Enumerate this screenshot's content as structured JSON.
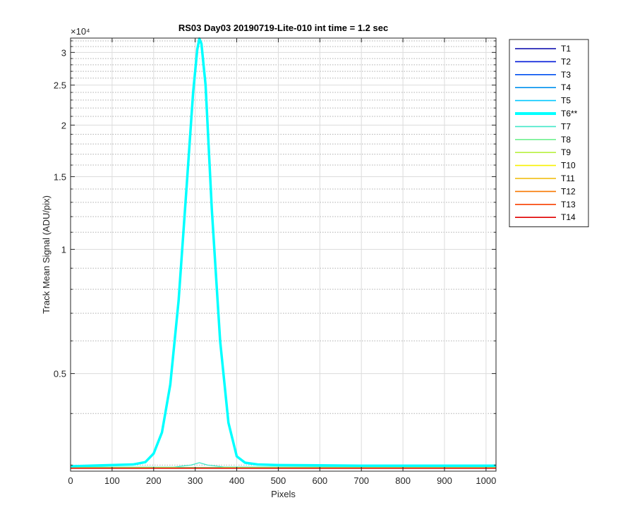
{
  "chart_data": {
    "type": "line",
    "title": "RS03 Day03 20190719-Lite-010 int time = 1.2 sec",
    "xlabel": "Pixels",
    "ylabel": "Track Mean Signal (ADU/pix)",
    "y_scale": "log",
    "y_exponent_label": "×10⁴",
    "xlim": [
      0,
      1024
    ],
    "ylim": [
      2900,
      32500
    ],
    "x_ticks": [
      0,
      100,
      200,
      300,
      400,
      500,
      600,
      700,
      800,
      900,
      1000
    ],
    "x_tick_labels": [
      "0",
      "100",
      "200",
      "300",
      "400",
      "500",
      "600",
      "700",
      "800",
      "900",
      "1000"
    ],
    "y_ticks": [
      5000,
      10000,
      15000,
      20000,
      25000,
      30000
    ],
    "y_tick_labels": [
      "0.5",
      "1",
      "1.5",
      "2",
      "2.5",
      "3"
    ],
    "grid": true,
    "legend_position": "outside-right",
    "series": [
      {
        "name": "T1",
        "color": "#0000aa",
        "x": [
          0,
          1024
        ],
        "y": [
          2960,
          2960
        ]
      },
      {
        "name": "T2",
        "color": "#0019d9",
        "x": [
          0,
          1024
        ],
        "y": [
          2960,
          2960
        ]
      },
      {
        "name": "T3",
        "color": "#0050f0",
        "x": [
          0,
          1024
        ],
        "y": [
          2960,
          2960
        ]
      },
      {
        "name": "T4",
        "color": "#0090ee",
        "x": [
          0,
          1024
        ],
        "y": [
          2960,
          2960
        ]
      },
      {
        "name": "T5",
        "color": "#00c8ff",
        "x": [
          0,
          1024
        ],
        "y": [
          2960,
          2960
        ]
      },
      {
        "name": "T6**",
        "color": "#00ffff",
        "highlight": true,
        "x": [
          0,
          150,
          180,
          200,
          220,
          240,
          260,
          280,
          295,
          305,
          310,
          315,
          325,
          340,
          360,
          380,
          400,
          420,
          450,
          500,
          600,
          700,
          800,
          900,
          1024
        ],
        "y": [
          2980,
          3010,
          3050,
          3200,
          3600,
          4700,
          7500,
          14500,
          24000,
          30500,
          32400,
          31500,
          25000,
          12500,
          6000,
          3800,
          3150,
          3040,
          3010,
          3000,
          2995,
          2990,
          2990,
          2990,
          2990
        ]
      },
      {
        "name": "T7",
        "color": "#40e8c8",
        "x": [
          0,
          250,
          290,
          310,
          330,
          370,
          1024
        ],
        "y": [
          2965,
          2968,
          3000,
          3040,
          3000,
          2968,
          2965
        ]
      },
      {
        "name": "T8",
        "color": "#70f090",
        "x": [
          0,
          1024
        ],
        "y": [
          2958,
          2958
        ]
      },
      {
        "name": "T9",
        "color": "#b8f040",
        "x": [
          0,
          1024
        ],
        "y": [
          2956,
          2956
        ]
      },
      {
        "name": "T10",
        "color": "#f8f000",
        "x": [
          0,
          1024
        ],
        "y": [
          2954,
          2954
        ]
      },
      {
        "name": "T11",
        "color": "#f0b800",
        "x": [
          0,
          1024
        ],
        "y": [
          2952,
          2952
        ]
      },
      {
        "name": "T12",
        "color": "#f87800",
        "x": [
          0,
          1024
        ],
        "y": [
          2950,
          2950
        ]
      },
      {
        "name": "T13",
        "color": "#f84000",
        "x": [
          0,
          1024
        ],
        "y": [
          2948,
          2948
        ]
      },
      {
        "name": "T14",
        "color": "#e00000",
        "x": [
          0,
          1024
        ],
        "y": [
          2946,
          2946
        ]
      }
    ]
  }
}
